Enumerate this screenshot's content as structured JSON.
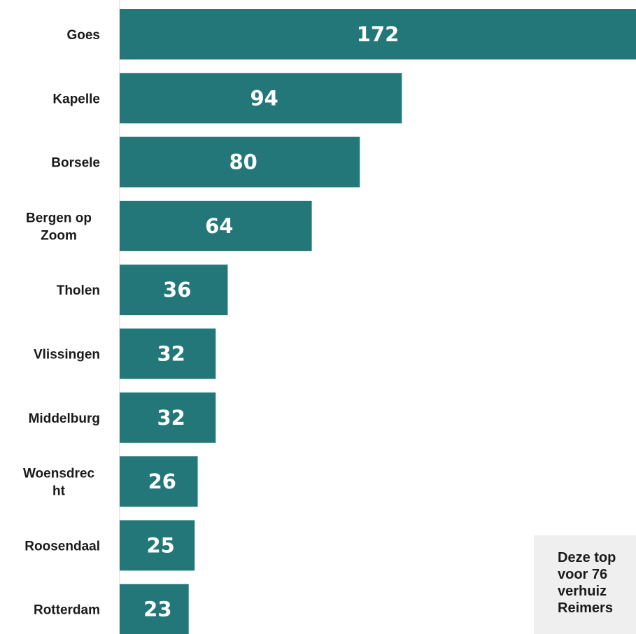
{
  "chart_data": {
    "type": "bar",
    "orientation": "horizontal",
    "categories": [
      "Goes",
      "Kapelle",
      "Borsele",
      "Bergen op Zoom",
      "Tholen",
      "Vlissingen",
      "Middelburg",
      "Woensdrecht",
      "Roosendaal",
      "Rotterdam"
    ],
    "category_lines": [
      [
        "Goes"
      ],
      [
        "Kapelle"
      ],
      [
        "Borsele"
      ],
      [
        "Bergen op",
        "Zoom"
      ],
      [
        "Tholen"
      ],
      [
        "Vlissingen"
      ],
      [
        "Middelburg"
      ],
      [
        "Woensdrec",
        "ht"
      ],
      [
        "Roosendaal"
      ],
      [
        "Rotterdam"
      ]
    ],
    "values": [
      172,
      94,
      80,
      64,
      36,
      32,
      32,
      26,
      25,
      23
    ],
    "value_labels": [
      "172",
      "94",
      "80",
      "64",
      "36",
      "32",
      "32",
      "26",
      "25",
      "23"
    ],
    "bar_color": "#237778",
    "value_label_color": "#ffffff",
    "axis_line_color": "#d9d9d9",
    "grid": false,
    "legend": "none"
  },
  "note": {
    "lines": [
      "Deze top",
      "voor 76",
      "verhuiz",
      "Reimers"
    ],
    "background": "#efefef"
  }
}
